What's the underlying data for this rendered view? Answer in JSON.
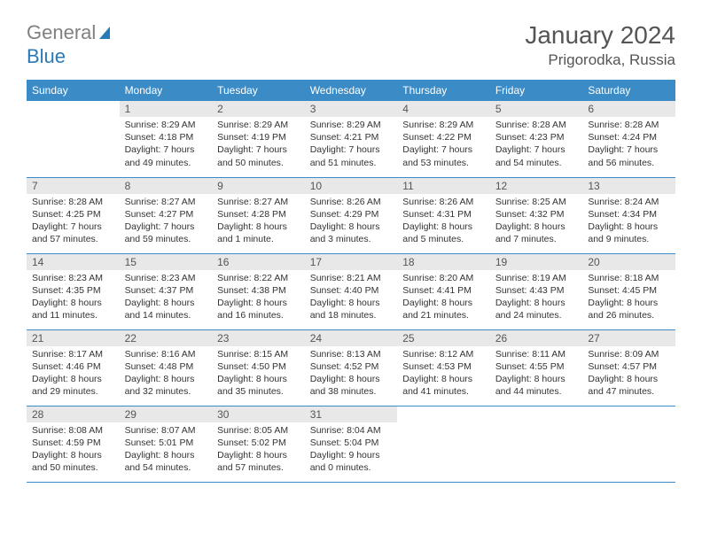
{
  "brand": {
    "word1": "General",
    "word2": "Blue"
  },
  "title": {
    "month_year": "January 2024",
    "location": "Prigorodka, Russia"
  },
  "colors": {
    "header_bg": "#3b8bc6",
    "header_text": "#ffffff",
    "daynum_bg": "#e8e8e8",
    "row_border": "#3b8bc6",
    "brand_gray": "#808080",
    "brand_blue": "#2a7ab8"
  },
  "weekdays": [
    "Sunday",
    "Monday",
    "Tuesday",
    "Wednesday",
    "Thursday",
    "Friday",
    "Saturday"
  ],
  "weeks": [
    [
      null,
      {
        "n": "1",
        "sr": "Sunrise: 8:29 AM",
        "ss": "Sunset: 4:18 PM",
        "d1": "Daylight: 7 hours",
        "d2": "and 49 minutes."
      },
      {
        "n": "2",
        "sr": "Sunrise: 8:29 AM",
        "ss": "Sunset: 4:19 PM",
        "d1": "Daylight: 7 hours",
        "d2": "and 50 minutes."
      },
      {
        "n": "3",
        "sr": "Sunrise: 8:29 AM",
        "ss": "Sunset: 4:21 PM",
        "d1": "Daylight: 7 hours",
        "d2": "and 51 minutes."
      },
      {
        "n": "4",
        "sr": "Sunrise: 8:29 AM",
        "ss": "Sunset: 4:22 PM",
        "d1": "Daylight: 7 hours",
        "d2": "and 53 minutes."
      },
      {
        "n": "5",
        "sr": "Sunrise: 8:28 AM",
        "ss": "Sunset: 4:23 PM",
        "d1": "Daylight: 7 hours",
        "d2": "and 54 minutes."
      },
      {
        "n": "6",
        "sr": "Sunrise: 8:28 AM",
        "ss": "Sunset: 4:24 PM",
        "d1": "Daylight: 7 hours",
        "d2": "and 56 minutes."
      }
    ],
    [
      {
        "n": "7",
        "sr": "Sunrise: 8:28 AM",
        "ss": "Sunset: 4:25 PM",
        "d1": "Daylight: 7 hours",
        "d2": "and 57 minutes."
      },
      {
        "n": "8",
        "sr": "Sunrise: 8:27 AM",
        "ss": "Sunset: 4:27 PM",
        "d1": "Daylight: 7 hours",
        "d2": "and 59 minutes."
      },
      {
        "n": "9",
        "sr": "Sunrise: 8:27 AM",
        "ss": "Sunset: 4:28 PM",
        "d1": "Daylight: 8 hours",
        "d2": "and 1 minute."
      },
      {
        "n": "10",
        "sr": "Sunrise: 8:26 AM",
        "ss": "Sunset: 4:29 PM",
        "d1": "Daylight: 8 hours",
        "d2": "and 3 minutes."
      },
      {
        "n": "11",
        "sr": "Sunrise: 8:26 AM",
        "ss": "Sunset: 4:31 PM",
        "d1": "Daylight: 8 hours",
        "d2": "and 5 minutes."
      },
      {
        "n": "12",
        "sr": "Sunrise: 8:25 AM",
        "ss": "Sunset: 4:32 PM",
        "d1": "Daylight: 8 hours",
        "d2": "and 7 minutes."
      },
      {
        "n": "13",
        "sr": "Sunrise: 8:24 AM",
        "ss": "Sunset: 4:34 PM",
        "d1": "Daylight: 8 hours",
        "d2": "and 9 minutes."
      }
    ],
    [
      {
        "n": "14",
        "sr": "Sunrise: 8:23 AM",
        "ss": "Sunset: 4:35 PM",
        "d1": "Daylight: 8 hours",
        "d2": "and 11 minutes."
      },
      {
        "n": "15",
        "sr": "Sunrise: 8:23 AM",
        "ss": "Sunset: 4:37 PM",
        "d1": "Daylight: 8 hours",
        "d2": "and 14 minutes."
      },
      {
        "n": "16",
        "sr": "Sunrise: 8:22 AM",
        "ss": "Sunset: 4:38 PM",
        "d1": "Daylight: 8 hours",
        "d2": "and 16 minutes."
      },
      {
        "n": "17",
        "sr": "Sunrise: 8:21 AM",
        "ss": "Sunset: 4:40 PM",
        "d1": "Daylight: 8 hours",
        "d2": "and 18 minutes."
      },
      {
        "n": "18",
        "sr": "Sunrise: 8:20 AM",
        "ss": "Sunset: 4:41 PM",
        "d1": "Daylight: 8 hours",
        "d2": "and 21 minutes."
      },
      {
        "n": "19",
        "sr": "Sunrise: 8:19 AM",
        "ss": "Sunset: 4:43 PM",
        "d1": "Daylight: 8 hours",
        "d2": "and 24 minutes."
      },
      {
        "n": "20",
        "sr": "Sunrise: 8:18 AM",
        "ss": "Sunset: 4:45 PM",
        "d1": "Daylight: 8 hours",
        "d2": "and 26 minutes."
      }
    ],
    [
      {
        "n": "21",
        "sr": "Sunrise: 8:17 AM",
        "ss": "Sunset: 4:46 PM",
        "d1": "Daylight: 8 hours",
        "d2": "and 29 minutes."
      },
      {
        "n": "22",
        "sr": "Sunrise: 8:16 AM",
        "ss": "Sunset: 4:48 PM",
        "d1": "Daylight: 8 hours",
        "d2": "and 32 minutes."
      },
      {
        "n": "23",
        "sr": "Sunrise: 8:15 AM",
        "ss": "Sunset: 4:50 PM",
        "d1": "Daylight: 8 hours",
        "d2": "and 35 minutes."
      },
      {
        "n": "24",
        "sr": "Sunrise: 8:13 AM",
        "ss": "Sunset: 4:52 PM",
        "d1": "Daylight: 8 hours",
        "d2": "and 38 minutes."
      },
      {
        "n": "25",
        "sr": "Sunrise: 8:12 AM",
        "ss": "Sunset: 4:53 PM",
        "d1": "Daylight: 8 hours",
        "d2": "and 41 minutes."
      },
      {
        "n": "26",
        "sr": "Sunrise: 8:11 AM",
        "ss": "Sunset: 4:55 PM",
        "d1": "Daylight: 8 hours",
        "d2": "and 44 minutes."
      },
      {
        "n": "27",
        "sr": "Sunrise: 8:09 AM",
        "ss": "Sunset: 4:57 PM",
        "d1": "Daylight: 8 hours",
        "d2": "and 47 minutes."
      }
    ],
    [
      {
        "n": "28",
        "sr": "Sunrise: 8:08 AM",
        "ss": "Sunset: 4:59 PM",
        "d1": "Daylight: 8 hours",
        "d2": "and 50 minutes."
      },
      {
        "n": "29",
        "sr": "Sunrise: 8:07 AM",
        "ss": "Sunset: 5:01 PM",
        "d1": "Daylight: 8 hours",
        "d2": "and 54 minutes."
      },
      {
        "n": "30",
        "sr": "Sunrise: 8:05 AM",
        "ss": "Sunset: 5:02 PM",
        "d1": "Daylight: 8 hours",
        "d2": "and 57 minutes."
      },
      {
        "n": "31",
        "sr": "Sunrise: 8:04 AM",
        "ss": "Sunset: 5:04 PM",
        "d1": "Daylight: 9 hours",
        "d2": "and 0 minutes."
      },
      null,
      null,
      null
    ]
  ]
}
